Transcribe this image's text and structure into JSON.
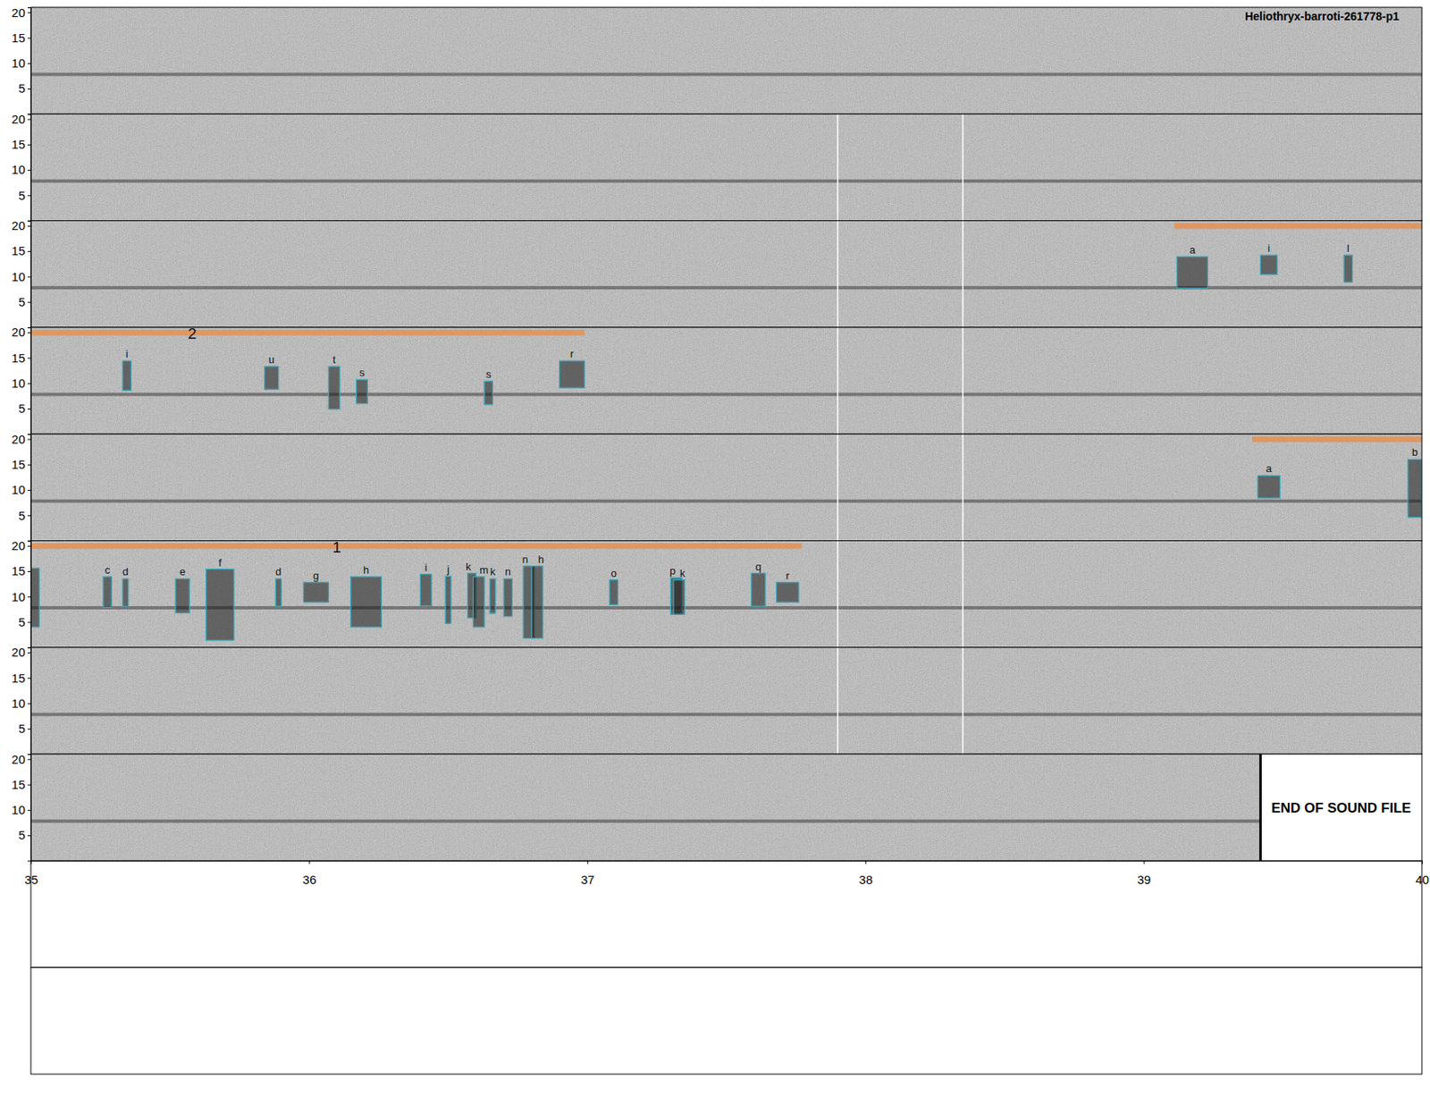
{
  "chart_data": {
    "type": "spectrogram",
    "title": "Heliothryx-barroti-261778-p1",
    "xlim": [
      35,
      40
    ],
    "xticks": [
      35,
      36,
      37,
      38,
      39,
      40
    ],
    "ylim": [
      0,
      21
    ],
    "yticks": [
      5,
      10,
      15,
      20
    ],
    "hum_khz": 7.8,
    "end_label": "END OF SOUND FILE",
    "rows": [
      {
        "dividers": [],
        "segments": [],
        "annotations": []
      },
      {
        "dividers": [
          37.9,
          38.35
        ],
        "segments": [],
        "annotations": []
      },
      {
        "dividers": [
          37.9,
          38.35
        ],
        "segments": [
          {
            "x0": 39.11,
            "x1": 40
          }
        ],
        "annotations": [
          {
            "x0": 39.12,
            "x1": 39.23,
            "y0": 7.7,
            "y1": 13.9,
            "label": "a"
          },
          {
            "x0": 39.42,
            "x1": 39.48,
            "y0": 10.4,
            "y1": 14.2,
            "label": "i"
          },
          {
            "x0": 39.72,
            "x1": 39.75,
            "y0": 8.9,
            "y1": 14.2,
            "label": "l"
          }
        ]
      },
      {
        "dividers": [
          37.9,
          38.35
        ],
        "segments": [
          {
            "x0": 35,
            "x1": 36.99,
            "label": "2",
            "label_at": 35.58
          }
        ],
        "annotations": [
          {
            "x0": 35.33,
            "x1": 35.36,
            "y0": 8.6,
            "y1": 14.4,
            "label": "i"
          },
          {
            "x0": 35.84,
            "x1": 35.89,
            "y0": 8.8,
            "y1": 13.3,
            "label": "u"
          },
          {
            "x0": 36.07,
            "x1": 36.11,
            "y0": 4.9,
            "y1": 13.3,
            "label": "t"
          },
          {
            "x0": 36.17,
            "x1": 36.21,
            "y0": 6.0,
            "y1": 10.7,
            "label": "s"
          },
          {
            "x0": 36.63,
            "x1": 36.66,
            "y0": 5.8,
            "y1": 10.4,
            "label": "s"
          },
          {
            "x0": 36.9,
            "x1": 36.99,
            "y0": 9.1,
            "y1": 14.4,
            "label": "r"
          }
        ]
      },
      {
        "dividers": [
          37.9,
          38.35
        ],
        "segments": [
          {
            "x0": 39.39,
            "x1": 40
          }
        ],
        "annotations": [
          {
            "x0": 39.41,
            "x1": 39.49,
            "y0": 8.4,
            "y1": 12.8,
            "label": "a"
          },
          {
            "x0": 39.95,
            "x1": 40,
            "y0": 4.6,
            "y1": 16.0,
            "label": "b"
          }
        ]
      },
      {
        "dividers": [
          37.9,
          38.35
        ],
        "segments": [
          {
            "x0": 35,
            "x1": 37.77,
            "label": "1",
            "label_at": 36.1
          }
        ],
        "annotations": [
          {
            "x0": 35,
            "x1": 35.03,
            "y0": 4.0,
            "y1": 15.6
          },
          {
            "x0": 35.26,
            "x1": 35.29,
            "y0": 7.9,
            "y1": 13.9,
            "label": "c"
          },
          {
            "x0": 35.33,
            "x1": 35.35,
            "y0": 8.1,
            "y1": 13.5,
            "label": "d"
          },
          {
            "x0": 35.52,
            "x1": 35.57,
            "y0": 6.8,
            "y1": 13.5,
            "label": "e"
          },
          {
            "x0": 35.63,
            "x1": 35.73,
            "y0": 1.4,
            "y1": 15.4,
            "label": "f"
          },
          {
            "x0": 35.88,
            "x1": 35.9,
            "y0": 8.1,
            "y1": 13.5,
            "label": "d"
          },
          {
            "x0": 35.98,
            "x1": 36.07,
            "y0": 8.9,
            "y1": 12.8,
            "label": "g"
          },
          {
            "x0": 36.15,
            "x1": 36.26,
            "y0": 4.0,
            "y1": 13.9,
            "label": "h"
          },
          {
            "x0": 36.4,
            "x1": 36.44,
            "y0": 8.2,
            "y1": 14.4,
            "label": "i"
          },
          {
            "x0": 36.49,
            "x1": 36.51,
            "y0": 4.7,
            "y1": 14.0,
            "label": "j"
          },
          {
            "x0": 36.57,
            "x1": 36.6,
            "y0": 5.8,
            "y1": 14.6,
            "label": "k"
          },
          {
            "x0": 36.59,
            "x1": 36.63,
            "y0": 4.0,
            "y1": 13.9,
            "label": "m"
          },
          {
            "x0": 36.65,
            "x1": 36.67,
            "y0": 6.7,
            "y1": 13.5,
            "label": "k"
          },
          {
            "x0": 36.7,
            "x1": 36.73,
            "y0": 6.1,
            "y1": 13.5,
            "label": "n"
          },
          {
            "x0": 36.77,
            "x1": 36.81,
            "y0": 1.8,
            "y1": 16.0,
            "label": "n"
          },
          {
            "x0": 36.8,
            "x1": 36.84,
            "y0": 1.8,
            "y1": 16.0,
            "label": "h"
          },
          {
            "x0": 37.08,
            "x1": 37.11,
            "y0": 8.4,
            "y1": 13.3,
            "label": "o"
          },
          {
            "x0": 37.3,
            "x1": 37.34,
            "y0": 6.5,
            "y1": 13.7,
            "label": "p"
          },
          {
            "x0": 37.31,
            "x1": 37.35,
            "y0": 6.5,
            "y1": 13.3,
            "label": "k"
          },
          {
            "x0": 37.59,
            "x1": 37.64,
            "y0": 8.1,
            "y1": 14.6,
            "label": "q"
          },
          {
            "x0": 37.68,
            "x1": 37.76,
            "y0": 8.9,
            "y1": 12.8,
            "label": "r"
          }
        ]
      },
      {
        "dividers": [
          37.9,
          38.35
        ],
        "segments": [],
        "annotations": []
      },
      {
        "dividers": [],
        "segments": [],
        "annotations": [],
        "end": 39.42
      }
    ]
  }
}
